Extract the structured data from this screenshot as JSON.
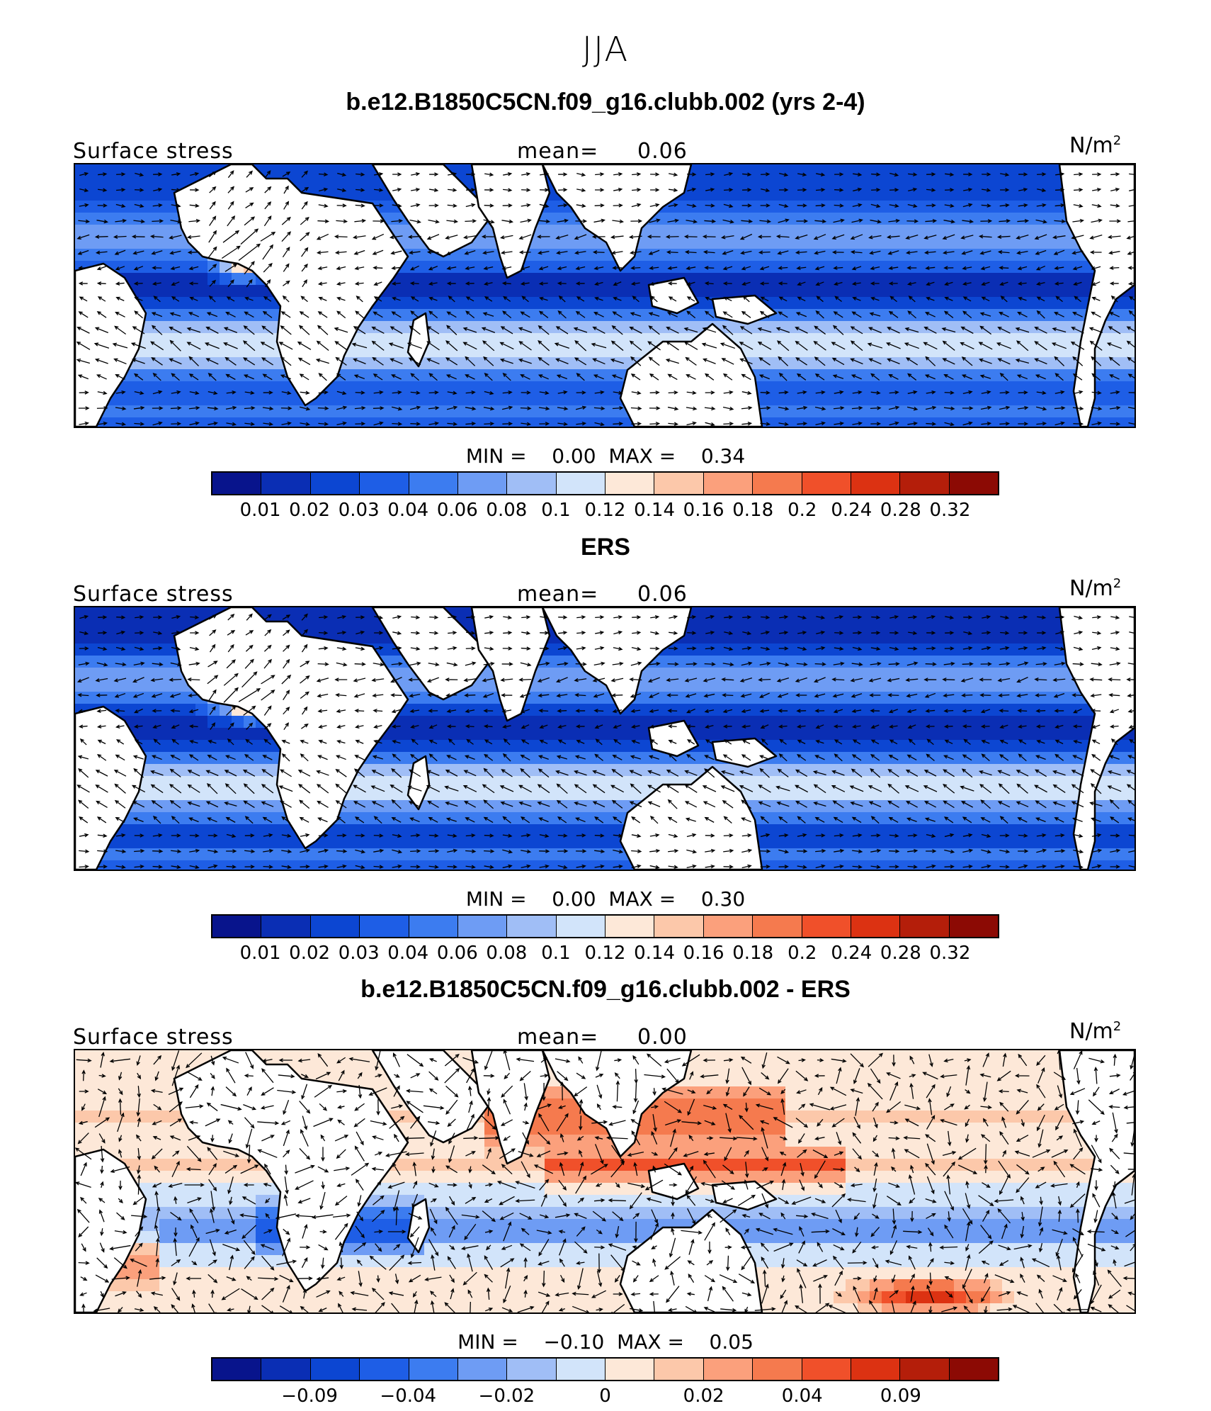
{
  "season": "JJA",
  "units": "N/m",
  "unit_exponent": "2",
  "field_label": "Surface stress",
  "mean_label": "mean=",
  "min_label": "MIN =",
  "max_label": "MAX =",
  "panels": [
    {
      "title": "b.e12.B1850C5CN.f09_g16.clubb.002 (yrs 2-4)",
      "mean": "0.06",
      "min": "0.00",
      "max": "0.34",
      "colorbar_ticks": [
        "0.01",
        "0.02",
        "0.03",
        "0.04",
        "0.06",
        "0.08",
        "0.1",
        "0.12",
        "0.14",
        "0.16",
        "0.18",
        "0.2",
        "0.24",
        "0.28",
        "0.32"
      ]
    },
    {
      "title": "ERS",
      "mean": "0.06",
      "min": "0.00",
      "max": "0.30",
      "colorbar_ticks": [
        "0.01",
        "0.02",
        "0.03",
        "0.04",
        "0.06",
        "0.08",
        "0.1",
        "0.12",
        "0.14",
        "0.16",
        "0.18",
        "0.2",
        "0.24",
        "0.28",
        "0.32"
      ]
    },
    {
      "title": "b.e12.B1850C5CN.f09_g16.clubb.002 - ERS",
      "mean": "0.00",
      "min": "−0.10",
      "max": "0.05",
      "colorbar_ticks": [
        "−0.09",
        "−0.04",
        "−0.02",
        "0",
        "0.02",
        "0.04",
        "0.09"
      ]
    }
  ],
  "colors": {
    "colorbar": [
      "#08148c",
      "#0a2eb4",
      "#0c46d2",
      "#1e5ee6",
      "#3c7cf0",
      "#6e9cf4",
      "#a0bef6",
      "#d2e4fa",
      "#fde8d8",
      "#fcc8aa",
      "#fba07c",
      "#f57a4e",
      "#f0502a",
      "#dc3212",
      "#b41e0a",
      "#8c0a04"
    ]
  },
  "chart_data": [
    {
      "type": "heatmap",
      "title": "b.e12.B1850C5CN.f09_g16.clubb.002 (yrs 2-4)",
      "variable": "Surface stress",
      "units": "N/m^2",
      "mean": 0.06,
      "min": 0.0,
      "max": 0.34,
      "levels": [
        0.01,
        0.02,
        0.03,
        0.04,
        0.06,
        0.08,
        0.1,
        0.12,
        0.14,
        0.16,
        0.18,
        0.2,
        0.24,
        0.28,
        0.32
      ],
      "overlay": "wind stress vectors"
    },
    {
      "type": "heatmap",
      "title": "ERS",
      "variable": "Surface stress",
      "units": "N/m^2",
      "mean": 0.06,
      "min": 0.0,
      "max": 0.3,
      "levels": [
        0.01,
        0.02,
        0.03,
        0.04,
        0.06,
        0.08,
        0.1,
        0.12,
        0.14,
        0.16,
        0.18,
        0.2,
        0.24,
        0.28,
        0.32
      ],
      "overlay": "wind stress vectors"
    },
    {
      "type": "heatmap",
      "title": "b.e12.B1850C5CN.f09_g16.clubb.002 - ERS",
      "variable": "Surface stress",
      "units": "N/m^2",
      "mean": 0.0,
      "min": -0.1,
      "max": 0.05,
      "levels": [
        -0.09,
        -0.04,
        -0.02,
        0,
        0.02,
        0.04,
        0.09
      ],
      "overlay": "wind stress difference vectors"
    }
  ]
}
